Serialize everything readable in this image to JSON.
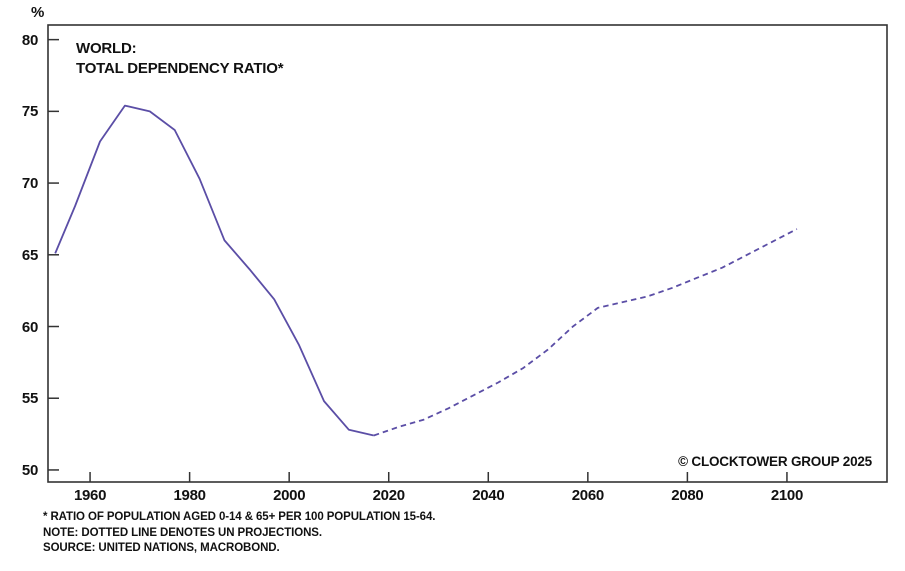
{
  "chart_data": {
    "type": "line",
    "title": "WORLD: TOTAL DEPENDENCY RATIO*",
    "title_lines": [
      "WORLD:",
      "TOTAL DEPENDENCY RATIO*"
    ],
    "y_axis_unit": "%",
    "xlabel": "",
    "ylabel": "%",
    "x_ticks": [
      1960,
      1980,
      2000,
      2020,
      2040,
      2060,
      2080,
      2100
    ],
    "y_ticks": [
      50,
      55,
      60,
      65,
      70,
      75,
      80
    ],
    "xlim": [
      1951.55,
      2120.1
    ],
    "ylim": [
      49.16,
      81.02
    ],
    "grid": false,
    "legend": false,
    "series": [
      {
        "name": "historical",
        "style": "solid",
        "points": [
          [
            1953,
            65.1
          ],
          [
            1957,
            68.4
          ],
          [
            1962,
            72.9
          ],
          [
            1967,
            75.4
          ],
          [
            1972,
            75.0
          ],
          [
            1977,
            73.7
          ],
          [
            1982,
            70.3
          ],
          [
            1987,
            66.0
          ],
          [
            1992,
            64.0
          ],
          [
            1997,
            61.9
          ],
          [
            2002,
            58.7
          ],
          [
            2007,
            54.8
          ],
          [
            2012,
            52.8
          ],
          [
            2017,
            52.4
          ]
        ]
      },
      {
        "name": "un-projection",
        "style": "dashed",
        "points": [
          [
            2017,
            52.4
          ],
          [
            2022,
            53.0
          ],
          [
            2027,
            53.5
          ],
          [
            2032,
            54.3
          ],
          [
            2037,
            55.2
          ],
          [
            2042,
            56.1
          ],
          [
            2047,
            57.1
          ],
          [
            2052,
            58.4
          ],
          [
            2057,
            60.0
          ],
          [
            2062,
            61.3
          ],
          [
            2067,
            61.7
          ],
          [
            2072,
            62.1
          ],
          [
            2077,
            62.7
          ],
          [
            2082,
            63.4
          ],
          [
            2087,
            64.1
          ],
          [
            2092,
            65.0
          ],
          [
            2097,
            65.9
          ],
          [
            2102,
            66.8
          ]
        ]
      }
    ],
    "colors": {
      "line": "#5b4ea6",
      "axis": "#333333",
      "text": "#111111"
    },
    "watermark": "© CLOCKTOWER GROUP 2025",
    "footnotes": [
      "* RATIO OF POPULATION AGED 0-14 & 65+ PER 100 POPULATION 15-64.",
      "NOTE: DOTTED LINE DENOTES UN PROJECTIONS.",
      "SOURCE: UNITED NATIONS, MACROBOND."
    ]
  }
}
